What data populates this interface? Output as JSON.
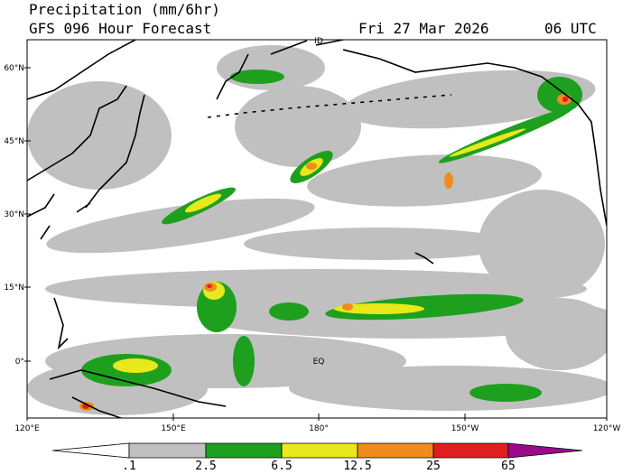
{
  "header": {
    "title": "Precipitation (mm/6hr)",
    "subtitle": "GFS 096 Hour Forecast",
    "date": "Fri 27 Mar 2026",
    "time": "06 UTC"
  },
  "map": {
    "lat_labels": [
      "60°N",
      "45°N",
      "30°N",
      "15°N",
      "0°"
    ],
    "lon_labels": [
      "120°E",
      "150°E",
      "180°",
      "150°W",
      "120°W"
    ],
    "annotations": [
      "ID",
      "EQ"
    ]
  },
  "colorbar": {
    "labels": [
      ".1",
      "2.5",
      "6.5",
      "12.5",
      "25",
      "65"
    ],
    "colors": [
      "#ffffff",
      "#c0c0c0",
      "#1ea01e",
      "#e8e81a",
      "#f08c1e",
      "#e01e1e",
      "#9c0a8c"
    ]
  }
}
